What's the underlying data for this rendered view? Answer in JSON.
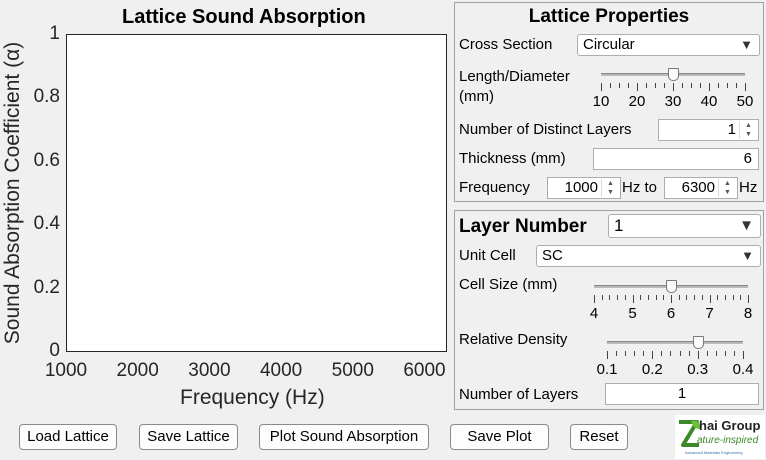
{
  "chart_data": {
    "type": "line",
    "title": "Lattice Sound Absorption",
    "xlabel": "Frequency (Hz)",
    "ylabel": "Sound  Absorption  Coefficient  (α)",
    "xlim": [
      1000,
      6300
    ],
    "ylim": [
      0,
      1
    ],
    "xticks": [
      "1000",
      "2000",
      "3000",
      "4000",
      "5000",
      "6000"
    ],
    "yticks": [
      "0",
      "0.2",
      "0.4",
      "0.6",
      "0.8",
      "1"
    ],
    "series": [],
    "grid": false
  },
  "lattice_properties": {
    "title": "Lattice Properties",
    "cross_section_label": "Cross Section",
    "cross_section_value": "Circular",
    "length_diameter_label_1": "Length/Diameter",
    "length_diameter_label_2": "(mm)",
    "length_diameter_value": 30,
    "length_diameter_min": 10,
    "length_diameter_max": 50,
    "length_diameter_ticks": [
      "10",
      "20",
      "30",
      "40",
      "50"
    ],
    "num_layers_label": "Number of Distinct Layers",
    "num_layers_value": "1",
    "thickness_label": "Thickness (mm)",
    "thickness_value": "6",
    "frequency_label": "Frequency",
    "frequency_from": "1000",
    "hz_to_label": "Hz to",
    "frequency_to": "6300",
    "hz_label": "Hz"
  },
  "layer_panel": {
    "title": "Layer Number",
    "layer_value": "1",
    "unit_cell_label": "Unit Cell",
    "unit_cell_value": "SC",
    "cell_size_label": "Cell Size (mm)",
    "cell_size_value": 6,
    "cell_size_min": 4,
    "cell_size_max": 8,
    "cell_size_ticks": [
      "4",
      "5",
      "6",
      "7",
      "8"
    ],
    "rel_density_label": "Relative Density",
    "rel_density_value": 0.3,
    "rel_density_min": 0.1,
    "rel_density_max": 0.4,
    "rel_density_ticks": [
      "0.1",
      "0.2",
      "0.3",
      "0.4"
    ],
    "num_layers_label": "Number of Layers",
    "num_layers_value": "1"
  },
  "buttons": {
    "load": "Load Lattice",
    "save": "Save Lattice",
    "plot": "Plot Sound Absorption",
    "save_plot": "Save Plot",
    "reset": "Reset"
  },
  "logo": {
    "line1": "hai Group",
    "line2": "ature-inspired",
    "line3": "Advanced Materials Engineering"
  }
}
